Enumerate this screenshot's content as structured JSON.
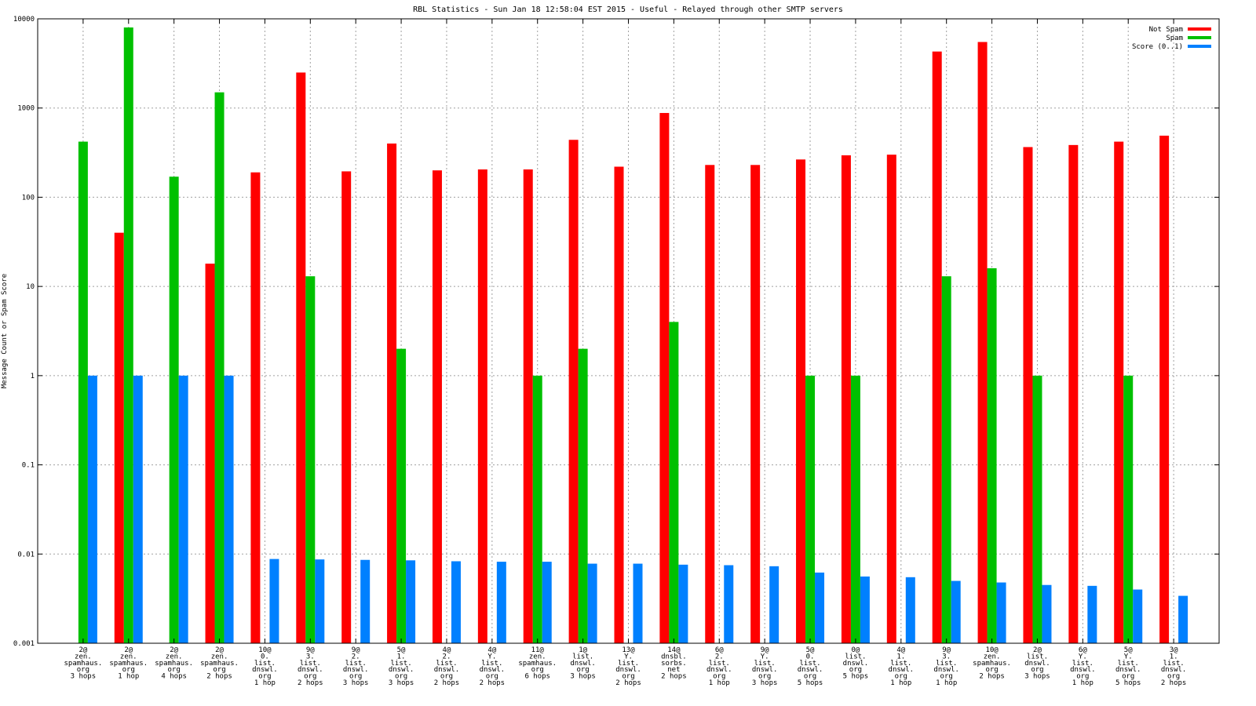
{
  "chart_data": {
    "type": "bar",
    "title": "RBL Statistics - Sun Jan 18 12:58:04 EST 2015 - Useful - Relayed through other SMTP servers",
    "ylabel": "Message Count or Spam Score",
    "xlabel": "",
    "yscale": "log",
    "ylim": [
      0.001,
      10000
    ],
    "yticks": [
      "0.001",
      "0.01",
      "0.1",
      "1",
      "10",
      "100",
      "1000",
      "10000"
    ],
    "grid": true,
    "legend_position": "top-right",
    "categories": [
      [
        "2@",
        "zen.",
        "spamhaus.",
        "org",
        "3 hops"
      ],
      [
        "2@",
        "zen.",
        "spamhaus.",
        "org",
        "1 hop"
      ],
      [
        "2@",
        "zen.",
        "spamhaus.",
        "org",
        "4 hops"
      ],
      [
        "2@",
        "zen.",
        "spamhaus.",
        "org",
        "2 hops"
      ],
      [
        "10@",
        "0.",
        "list.",
        "dnswl.",
        "org",
        "1 hop"
      ],
      [
        "9@",
        "3.",
        "list.",
        "dnswl.",
        "org",
        "2 hops"
      ],
      [
        "9@",
        "2.",
        "list.",
        "dnswl.",
        "org",
        "3 hops"
      ],
      [
        "5@",
        "1.",
        "list.",
        "dnswl.",
        "org",
        "3 hops"
      ],
      [
        "4@",
        "2.",
        "list.",
        "dnswl.",
        "org",
        "2 hops"
      ],
      [
        "4@",
        "Y.",
        "list.",
        "dnswl.",
        "org",
        "2 hops"
      ],
      [
        "11@",
        "zen.",
        "spamhaus.",
        "org",
        "6 hops"
      ],
      [
        "1@",
        "list.",
        "dnswl.",
        "org",
        "3 hops"
      ],
      [
        "13@",
        "Y.",
        "list.",
        "dnswl.",
        "org",
        "2 hops"
      ],
      [
        "14@",
        "dnsbl.",
        "sorbs.",
        "net",
        "2 hops"
      ],
      [
        "6@",
        "2.",
        "list.",
        "dnswl.",
        "org",
        "1 hop"
      ],
      [
        "9@",
        "Y.",
        "list.",
        "dnswl.",
        "org",
        "3 hops"
      ],
      [
        "5@",
        "0.",
        "list.",
        "dnswl.",
        "org",
        "5 hops"
      ],
      [
        "0@",
        "list.",
        "dnswl.",
        "org",
        "5 hops"
      ],
      [
        "4@",
        "1.",
        "list.",
        "dnswl.",
        "org",
        "1 hop"
      ],
      [
        "9@",
        "3.",
        "list.",
        "dnswl.",
        "org",
        "1 hop"
      ],
      [
        "10@",
        "zen.",
        "spamhaus.",
        "org",
        "2 hops"
      ],
      [
        "2@",
        "list.",
        "dnswl.",
        "org",
        "3 hops"
      ],
      [
        "6@",
        "Y.",
        "list.",
        "dnswl.",
        "org",
        "1 hop"
      ],
      [
        "5@",
        "Y.",
        "list.",
        "dnswl.",
        "org",
        "5 hops"
      ],
      [
        "3@",
        "1.",
        "list.",
        "dnswl.",
        "org",
        "2 hops"
      ]
    ],
    "series": [
      {
        "name": "Not Spam",
        "color": "#ff0000",
        "values": [
          null,
          40,
          null,
          18,
          190,
          2500,
          195,
          400,
          200,
          205,
          205,
          440,
          220,
          880,
          230,
          230,
          265,
          295,
          300,
          4300,
          5500,
          365,
          385,
          420,
          490
        ]
      },
      {
        "name": "Spam",
        "color": "#00c000",
        "values": [
          420,
          8000,
          170,
          1500,
          null,
          13,
          null,
          2,
          null,
          null,
          1,
          2,
          null,
          4,
          null,
          null,
          1,
          1,
          null,
          13,
          16,
          1,
          null,
          1,
          null
        ]
      },
      {
        "name": "Score (0..1)",
        "color": "#0080ff",
        "values": [
          1,
          1,
          1,
          1,
          0.0088,
          0.0087,
          0.0086,
          0.0085,
          0.0083,
          0.0082,
          0.0082,
          0.0078,
          0.0078,
          0.0076,
          0.0075,
          0.0073,
          0.0062,
          0.0056,
          0.0055,
          0.005,
          0.0048,
          0.0045,
          0.0044,
          0.004,
          0.0034
        ]
      }
    ]
  }
}
